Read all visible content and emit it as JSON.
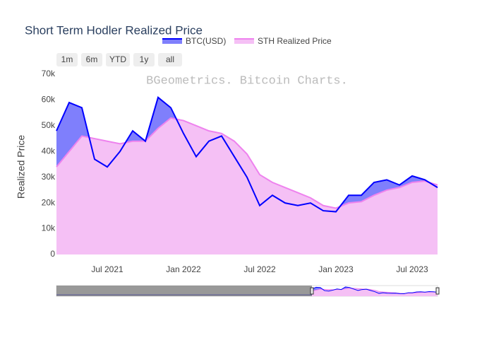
{
  "chart_data": {
    "type": "area",
    "title": "Short Term Hodler Realized Price",
    "watermark": "BGeometrics. Bitcoin Charts.",
    "y_label": "Realized Price",
    "range_buttons": [
      "1m",
      "6m",
      "YTD",
      "1y",
      "all"
    ],
    "x": [
      "2021-03",
      "2021-04",
      "2021-05",
      "2021-06",
      "2021-07",
      "2021-08",
      "2021-09",
      "2021-10",
      "2021-11",
      "2021-12",
      "2022-01",
      "2022-02",
      "2022-03",
      "2022-04",
      "2022-05",
      "2022-06",
      "2022-07",
      "2022-08",
      "2022-09",
      "2022-10",
      "2022-11",
      "2022-12",
      "2023-01",
      "2023-02",
      "2023-03",
      "2023-04",
      "2023-05",
      "2023-06",
      "2023-07",
      "2023-08",
      "2023-09"
    ],
    "series": [
      {
        "name": "BTC(USD)",
        "color": "#0000ff",
        "fill_color": "#7f7ffc",
        "values": [
          48000,
          59000,
          57000,
          37000,
          34000,
          40000,
          48000,
          44000,
          61000,
          57000,
          47000,
          38000,
          44000,
          46000,
          38000,
          30000,
          19000,
          23000,
          20000,
          19000,
          20000,
          17000,
          16600,
          23000,
          23000,
          28000,
          29000,
          27000,
          30500,
          29000,
          26000
        ]
      },
      {
        "name": "STH Realized Price",
        "color": "#ee82ee",
        "fill_color": "#f5c0f5",
        "values": [
          34000,
          40000,
          46000,
          45000,
          44000,
          43000,
          44000,
          44000,
          49000,
          53000,
          52000,
          50000,
          48000,
          47000,
          44000,
          39000,
          31000,
          28000,
          26000,
          24000,
          22000,
          19000,
          18000,
          20000,
          20500,
          23000,
          25000,
          26000,
          28000,
          28500,
          27000
        ]
      }
    ],
    "xlim": [
      "2021-03",
      "2023-09"
    ],
    "xticks": [
      {
        "value": "2021-07",
        "label": "Jul 2021"
      },
      {
        "value": "2022-01",
        "label": "Jan 2022"
      },
      {
        "value": "2022-07",
        "label": "Jul 2022"
      },
      {
        "value": "2023-01",
        "label": "Jan 2023"
      },
      {
        "value": "2023-07",
        "label": "Jul 2023"
      }
    ],
    "ylim": [
      0,
      70000
    ],
    "yticks": [
      0,
      {
        "value": 10000,
        "label": "10k"
      },
      {
        "value": 20000,
        "label": "20k"
      },
      {
        "value": 30000,
        "label": "30k"
      },
      {
        "value": 40000,
        "label": "40k"
      },
      {
        "value": 50000,
        "label": "50k"
      },
      {
        "value": 60000,
        "label": "60k"
      },
      {
        "value": 70000,
        "label": "70k"
      }
    ],
    "grid": false
  }
}
